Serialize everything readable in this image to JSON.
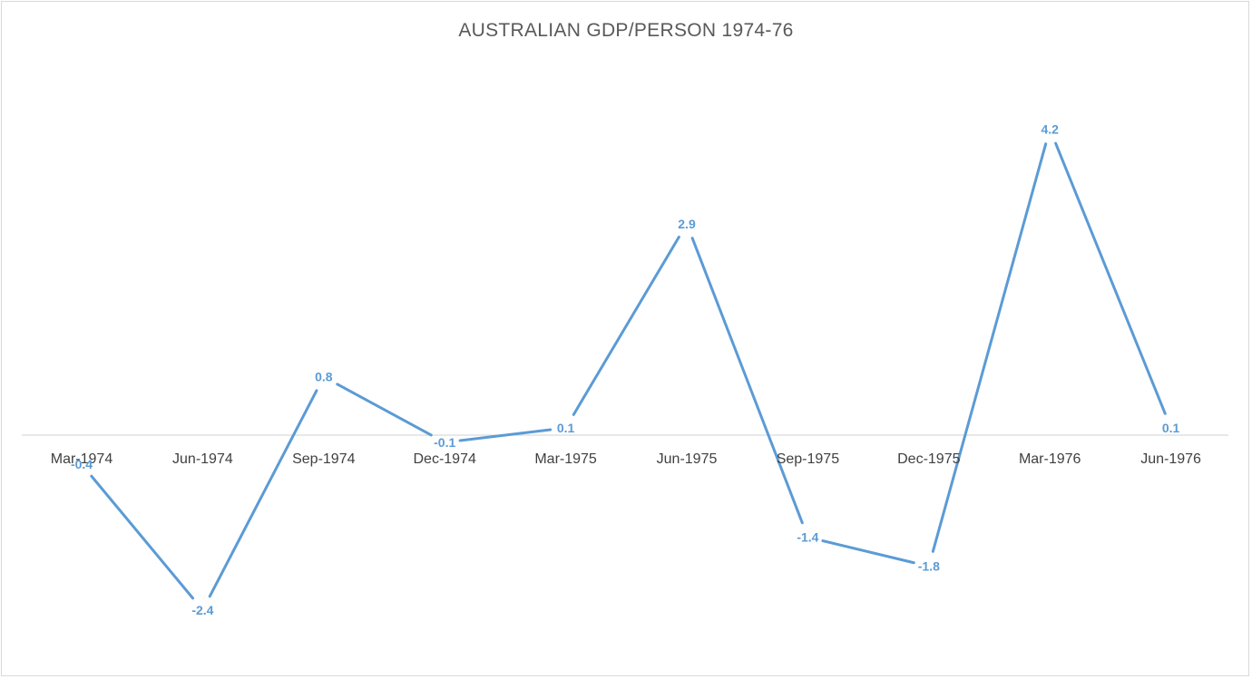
{
  "chart_data": {
    "type": "line",
    "title": "AUSTRALIAN GDP/PERSON 1974-76",
    "xlabel": "",
    "ylabel": "",
    "categories": [
      "Mar-1974",
      "Jun-1974",
      "Sep-1974",
      "Dec-1974",
      "Mar-1975",
      "Jun-1975",
      "Sep-1975",
      "Dec-1975",
      "Mar-1976",
      "Jun-1976"
    ],
    "series": [
      {
        "values": [
          -0.4,
          -2.4,
          0.8,
          -0.1,
          0.1,
          2.9,
          -1.4,
          -1.8,
          4.2,
          0.1
        ],
        "labels": [
          "-0.4",
          "-2.4",
          "0.8",
          "-0.1",
          "0.1",
          "2.9",
          "-1.4",
          "-1.8",
          "4.2",
          "0.1"
        ],
        "color": "#5b9bd5"
      }
    ],
    "ylim": [
      -2.4,
      4.2
    ],
    "grid": false,
    "legend": "none",
    "axis_color": "#d9d9d9",
    "tick_label_color": "#404040"
  }
}
